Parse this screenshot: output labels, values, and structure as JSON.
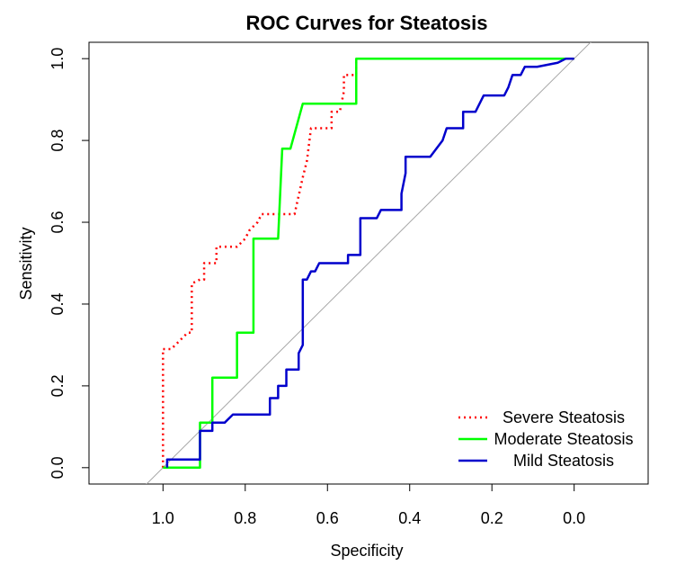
{
  "chart_data": {
    "type": "line",
    "title": "ROC Curves for Steatosis",
    "xlabel": "Specificity",
    "ylabel": "Sensitivity",
    "xlim": [
      1.18,
      -0.18
    ],
    "ylim": [
      -0.04,
      1.04
    ],
    "x_axis_reversed": true,
    "x_ticks": [
      1.0,
      0.8,
      0.6,
      0.4,
      0.2,
      0.0
    ],
    "x_tick_labels": [
      "1.0",
      "0.8",
      "0.6",
      "0.4",
      "0.2",
      "0.0"
    ],
    "y_ticks": [
      0.0,
      0.2,
      0.4,
      0.6,
      0.8,
      1.0
    ],
    "y_tick_labels": [
      "0.0",
      "0.2",
      "0.4",
      "0.6",
      "0.8",
      "1.0"
    ],
    "reference_line": {
      "from": [
        1.0,
        0.0
      ],
      "to": [
        0.0,
        1.0
      ],
      "color": "#a6a6a6"
    },
    "legend_position": "bottom-right",
    "grid": false,
    "series": [
      {
        "name": "Severe Steatosis",
        "color": "#ff0000",
        "style": "dotted",
        "points": [
          [
            1.0,
            0.0
          ],
          [
            1.0,
            0.29
          ],
          [
            0.98,
            0.29
          ],
          [
            0.96,
            0.31
          ],
          [
            0.94,
            0.33
          ],
          [
            0.93,
            0.33
          ],
          [
            0.93,
            0.45
          ],
          [
            0.91,
            0.46
          ],
          [
            0.9,
            0.46
          ],
          [
            0.9,
            0.5
          ],
          [
            0.88,
            0.5
          ],
          [
            0.87,
            0.5
          ],
          [
            0.87,
            0.54
          ],
          [
            0.85,
            0.54
          ],
          [
            0.84,
            0.54
          ],
          [
            0.82,
            0.54
          ],
          [
            0.8,
            0.56
          ],
          [
            0.79,
            0.58
          ],
          [
            0.77,
            0.6
          ],
          [
            0.76,
            0.62
          ],
          [
            0.74,
            0.62
          ],
          [
            0.72,
            0.62
          ],
          [
            0.7,
            0.62
          ],
          [
            0.68,
            0.62
          ],
          [
            0.66,
            0.71
          ],
          [
            0.65,
            0.75
          ],
          [
            0.64,
            0.83
          ],
          [
            0.62,
            0.83
          ],
          [
            0.6,
            0.83
          ],
          [
            0.59,
            0.83
          ],
          [
            0.59,
            0.87
          ],
          [
            0.57,
            0.87
          ],
          [
            0.56,
            0.92
          ],
          [
            0.56,
            0.96
          ],
          [
            0.54,
            0.96
          ],
          [
            0.53,
            0.96
          ],
          [
            0.53,
            1.0
          ],
          [
            0.0,
            1.0
          ]
        ]
      },
      {
        "name": "Moderate Steatosis",
        "color": "#00ff00",
        "style": "solid",
        "points": [
          [
            1.0,
            0.0
          ],
          [
            0.91,
            0.0
          ],
          [
            0.91,
            0.11
          ],
          [
            0.88,
            0.11
          ],
          [
            0.88,
            0.22
          ],
          [
            0.82,
            0.22
          ],
          [
            0.82,
            0.33
          ],
          [
            0.78,
            0.33
          ],
          [
            0.78,
            0.56
          ],
          [
            0.72,
            0.56
          ],
          [
            0.71,
            0.78
          ],
          [
            0.69,
            0.78
          ],
          [
            0.66,
            0.89
          ],
          [
            0.53,
            0.89
          ],
          [
            0.53,
            1.0
          ],
          [
            0.0,
            1.0
          ]
        ]
      },
      {
        "name": "Mild Steatosis",
        "color": "#0000cc",
        "style": "solid",
        "points": [
          [
            0.99,
            0.0
          ],
          [
            0.99,
            0.02
          ],
          [
            0.91,
            0.02
          ],
          [
            0.91,
            0.09
          ],
          [
            0.88,
            0.09
          ],
          [
            0.88,
            0.11
          ],
          [
            0.85,
            0.11
          ],
          [
            0.83,
            0.13
          ],
          [
            0.76,
            0.13
          ],
          [
            0.74,
            0.13
          ],
          [
            0.74,
            0.17
          ],
          [
            0.72,
            0.17
          ],
          [
            0.72,
            0.2
          ],
          [
            0.7,
            0.2
          ],
          [
            0.7,
            0.24
          ],
          [
            0.67,
            0.24
          ],
          [
            0.67,
            0.28
          ],
          [
            0.66,
            0.3
          ],
          [
            0.66,
            0.46
          ],
          [
            0.65,
            0.46
          ],
          [
            0.64,
            0.48
          ],
          [
            0.63,
            0.48
          ],
          [
            0.62,
            0.5
          ],
          [
            0.55,
            0.5
          ],
          [
            0.55,
            0.52
          ],
          [
            0.52,
            0.52
          ],
          [
            0.52,
            0.61
          ],
          [
            0.48,
            0.61
          ],
          [
            0.47,
            0.63
          ],
          [
            0.42,
            0.63
          ],
          [
            0.42,
            0.67
          ],
          [
            0.41,
            0.72
          ],
          [
            0.41,
            0.76
          ],
          [
            0.35,
            0.76
          ],
          [
            0.32,
            0.8
          ],
          [
            0.31,
            0.83
          ],
          [
            0.27,
            0.83
          ],
          [
            0.27,
            0.87
          ],
          [
            0.24,
            0.87
          ],
          [
            0.22,
            0.91
          ],
          [
            0.18,
            0.91
          ],
          [
            0.17,
            0.91
          ],
          [
            0.16,
            0.93
          ],
          [
            0.15,
            0.96
          ],
          [
            0.13,
            0.96
          ],
          [
            0.12,
            0.98
          ],
          [
            0.09,
            0.98
          ],
          [
            0.04,
            0.99
          ],
          [
            0.02,
            1.0
          ],
          [
            0.0,
            1.0
          ]
        ]
      }
    ]
  }
}
